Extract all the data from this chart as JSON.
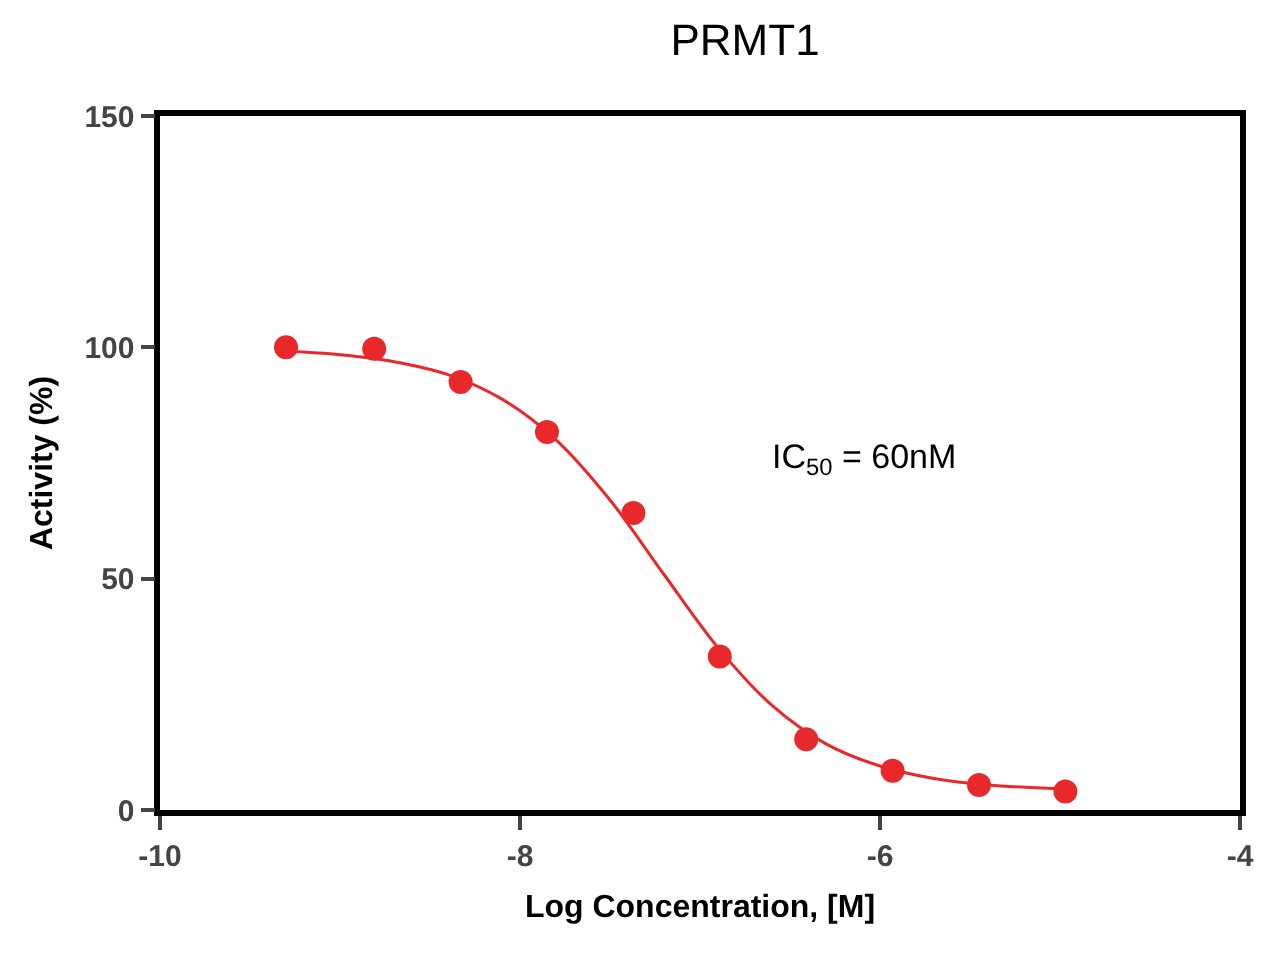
{
  "chart_data": {
    "type": "scatter",
    "title": "PRMT1",
    "xlabel": "Log Concentration, [M]",
    "ylabel": "Activity (%)",
    "annotations": [
      "IC$_{50}$ = 60nM"
    ],
    "series": [
      {
        "color": "#e8282b",
        "marker": "circle",
        "x": [
          -9.3,
          -8.81,
          -8.33,
          -7.85,
          -7.37,
          -6.89,
          -6.41,
          -5.93,
          -5.45,
          -4.97
        ],
        "values": [
          100,
          99.7,
          92.5,
          81.7,
          64.2,
          33.2,
          15.3,
          8.5,
          5.4,
          4
        ]
      },
      {
        "type": "line",
        "color": "#e8282b",
        "marker": "none",
        "x": [
          -9.3,
          -9.0,
          -8.7,
          -8.4,
          -8.1,
          -7.8,
          -7.5,
          -7.2,
          -6.9,
          -6.6,
          -6.3,
          -6.0,
          -5.7,
          -5.4,
          -5.0
        ],
        "values": [
          99.2,
          98.4,
          96.9,
          94.1,
          88.8,
          80.0,
          67.0,
          50.9,
          35.1,
          22.6,
          14.3,
          9.5,
          6.8,
          5.4,
          4.6
        ]
      }
    ],
    "xlim": [
      -10,
      -4
    ],
    "xticks": [
      -10,
      -8,
      -6,
      -4
    ],
    "ylim": [
      0,
      150
    ],
    "yticks": [
      0,
      50,
      100,
      150
    ],
    "grid": false,
    "legend": false
  }
}
